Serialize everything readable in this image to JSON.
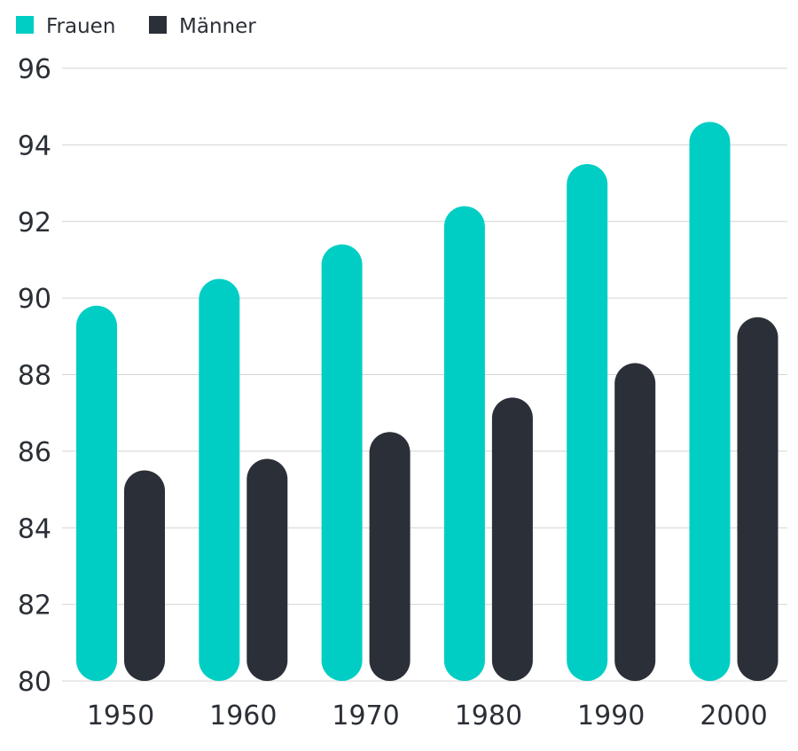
{
  "chart_data": {
    "type": "bar",
    "categories": [
      "1950",
      "1960",
      "1970",
      "1980",
      "1990",
      "2000"
    ],
    "series": [
      {
        "name": "Frauen",
        "color": "#00cec4",
        "values": [
          89.8,
          90.5,
          91.4,
          92.4,
          93.5,
          94.6
        ]
      },
      {
        "name": "Männer",
        "color": "#2b2f38",
        "values": [
          85.5,
          85.8,
          86.5,
          87.4,
          88.3,
          89.5
        ]
      }
    ],
    "ylim": [
      80,
      96
    ],
    "yticks": [
      "80",
      "82",
      "84",
      "86",
      "88",
      "90",
      "92",
      "94",
      "96"
    ],
    "grid": true,
    "legend_position": "top-left"
  }
}
